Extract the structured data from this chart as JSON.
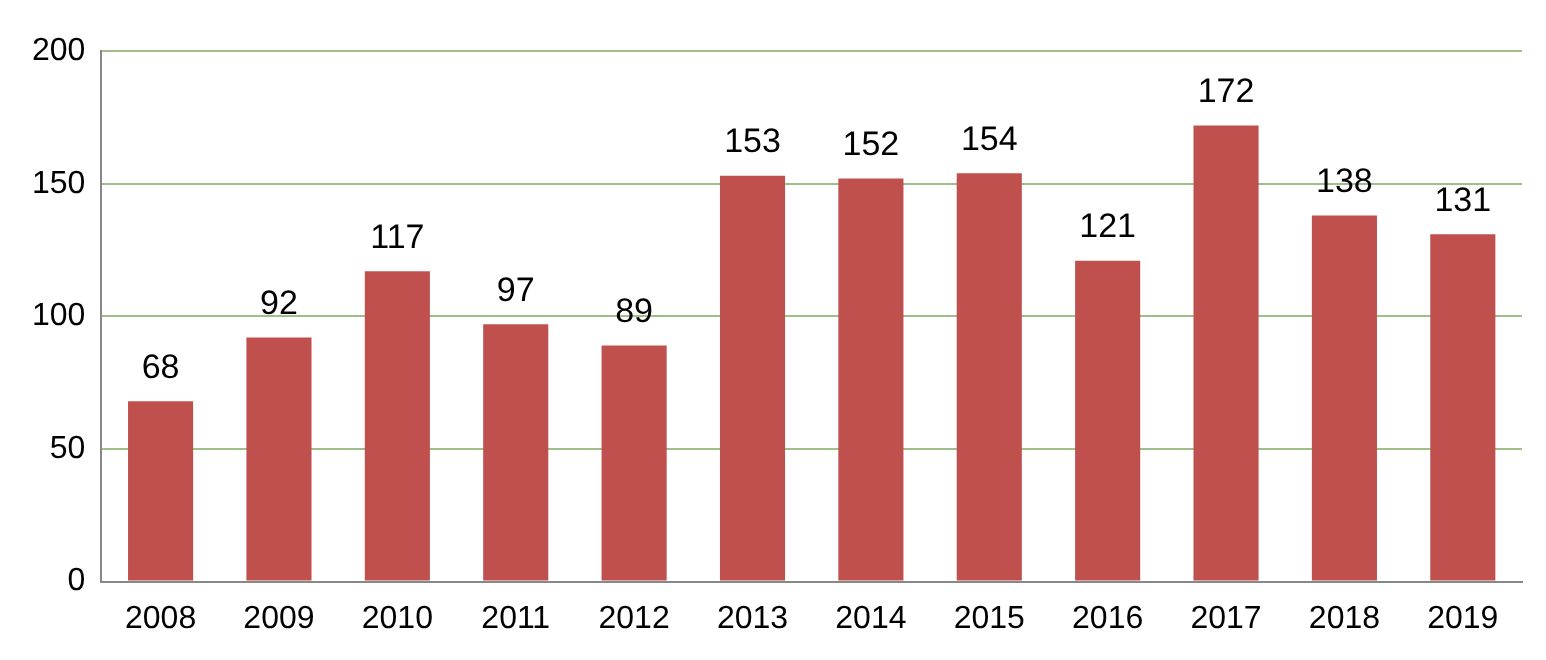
{
  "chart_data": {
    "type": "bar",
    "categories": [
      "2008",
      "2009",
      "2010",
      "2011",
      "2012",
      "2013",
      "2014",
      "2015",
      "2016",
      "2017",
      "2018",
      "2019"
    ],
    "values": [
      68,
      92,
      117,
      97,
      89,
      153,
      152,
      154,
      121,
      172,
      138,
      131
    ],
    "color": "#c0504d",
    "ylim": [
      0,
      200
    ],
    "yticks": [
      0,
      50,
      100,
      150,
      200
    ],
    "grid": "y",
    "data_labels": true
  }
}
